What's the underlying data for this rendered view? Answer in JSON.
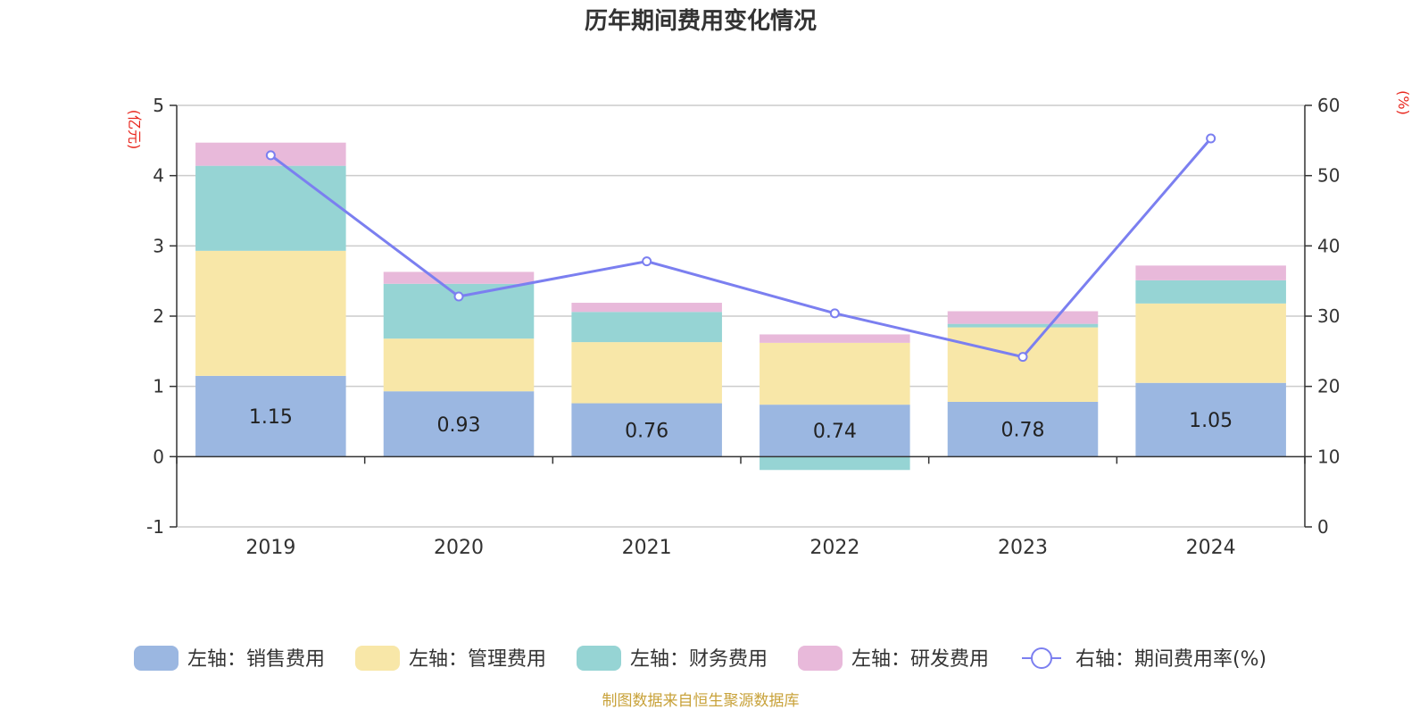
{
  "chart_data": {
    "type": "bar",
    "title": "历年期间费用变化情况",
    "categories": [
      "2019",
      "2020",
      "2021",
      "2022",
      "2023",
      "2024"
    ],
    "left_axis": {
      "unit_label": "(亿元)",
      "ylim": [
        -1,
        5
      ],
      "ticks": [
        -1,
        0,
        1,
        2,
        3,
        4,
        5
      ]
    },
    "right_axis": {
      "unit_label": "(%)",
      "ylim": [
        0,
        60
      ],
      "ticks": [
        0,
        10,
        20,
        30,
        40,
        50,
        60
      ]
    },
    "stacked": true,
    "series": [
      {
        "name": "左轴：销售费用",
        "axis": "left",
        "color": "#9bb7e1",
        "values": [
          1.15,
          0.93,
          0.76,
          0.74,
          0.78,
          1.05
        ],
        "show_labels": true
      },
      {
        "name": "左轴：管理费用",
        "axis": "left",
        "color": "#f8e7a8",
        "values": [
          1.78,
          0.75,
          0.87,
          0.88,
          1.06,
          1.13
        ],
        "show_labels": false
      },
      {
        "name": "左轴：财务费用",
        "axis": "left",
        "color": "#96d4d4",
        "values": [
          1.21,
          0.78,
          0.43,
          -0.19,
          0.05,
          0.33
        ],
        "show_labels": false
      },
      {
        "name": "左轴：研发费用",
        "axis": "left",
        "color": "#e8b9da",
        "values": [
          0.33,
          0.17,
          0.13,
          0.12,
          0.18,
          0.21
        ],
        "show_labels": false
      }
    ],
    "line_series": [
      {
        "name": "右轴：期间费用率(%)",
        "axis": "right",
        "color": "#7b7ff0",
        "values": [
          52.9,
          32.8,
          37.8,
          30.4,
          24.2,
          55.3
        ]
      }
    ],
    "grid": true,
    "legend_position": "bottom"
  },
  "source_note": "制图数据来自恒生聚源数据库"
}
